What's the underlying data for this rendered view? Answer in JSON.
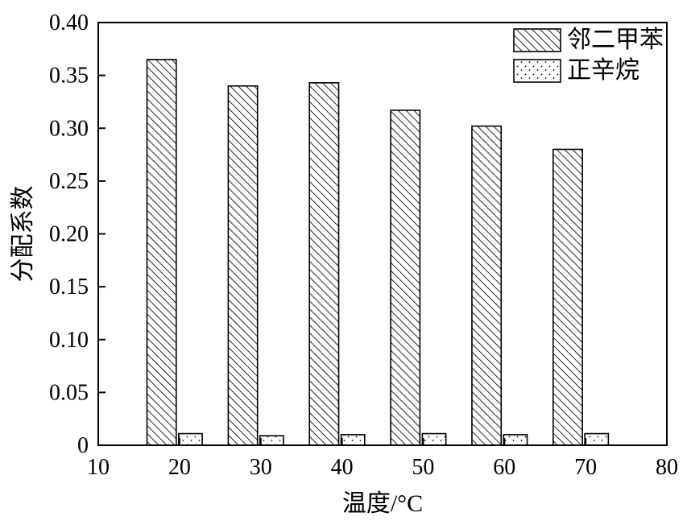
{
  "chart_data": {
    "type": "bar",
    "categories": [
      20,
      30,
      40,
      50,
      60,
      70
    ],
    "series": [
      {
        "name": "邻二甲苯",
        "pattern": "diagonal-hatch",
        "values": [
          0.365,
          0.34,
          0.343,
          0.317,
          0.302,
          0.28
        ]
      },
      {
        "name": "正辛烷",
        "pattern": "dots",
        "values": [
          0.011,
          0.009,
          0.01,
          0.011,
          0.01,
          0.011
        ]
      }
    ],
    "title": "",
    "xlabel": "温度/°C",
    "ylabel": "分配系数",
    "xlim": [
      10,
      80
    ],
    "ylim": [
      0,
      0.4
    ],
    "xticks": [
      10,
      20,
      30,
      40,
      50,
      60,
      70,
      80
    ],
    "yticks": [
      0,
      0.05,
      0.1,
      0.15,
      0.2,
      0.25,
      0.3,
      0.35,
      0.4
    ],
    "legend_position": "top-right",
    "grid": false,
    "colors": {
      "bar_stroke": "#000000",
      "axis": "#000000",
      "background": "#ffffff"
    }
  }
}
